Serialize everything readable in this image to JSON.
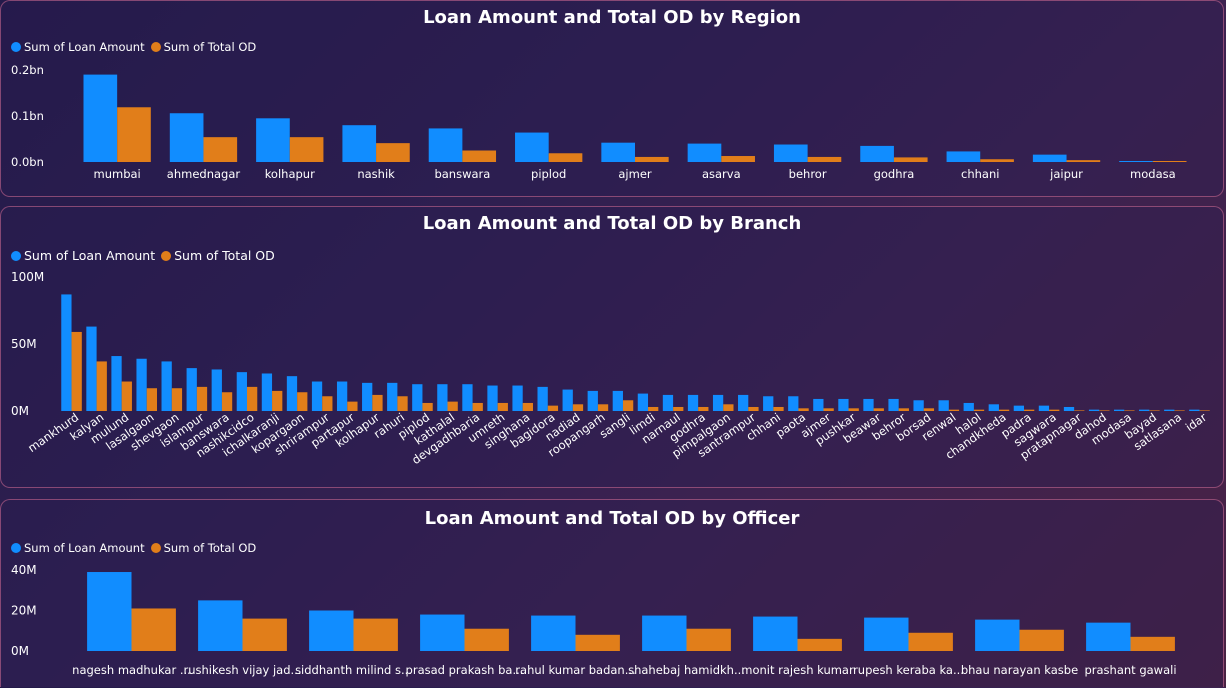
{
  "colors": {
    "loan": "#118dff",
    "od": "#e17e1a"
  },
  "chart_data": [
    {
      "type": "bar",
      "title": "Loan Amount and Total OD by Region",
      "legend": [
        "Sum of Loan Amount",
        "Sum of Total OD"
      ],
      "yticks": [
        "0.2bn",
        "0.1bn",
        "0.0bn"
      ],
      "ytick_values": [
        0.2,
        0.1,
        0.0
      ],
      "ylim": [
        0,
        0.2
      ],
      "categories": [
        "mumbai",
        "ahmednagar",
        "kolhapur",
        "nashik",
        "banswara",
        "piplod",
        "ajmer",
        "asarva",
        "behror",
        "godhra",
        "chhani",
        "jaipur",
        "modasa"
      ],
      "series": [
        {
          "name": "Sum of Loan Amount",
          "values": [
            0.19,
            0.106,
            0.095,
            0.08,
            0.073,
            0.064,
            0.042,
            0.04,
            0.038,
            0.035,
            0.023,
            0.016,
            0.002
          ]
        },
        {
          "name": "Sum of Total OD",
          "values": [
            0.119,
            0.054,
            0.054,
            0.041,
            0.025,
            0.019,
            0.011,
            0.013,
            0.011,
            0.01,
            0.006,
            0.004,
            0.001
          ]
        }
      ]
    },
    {
      "type": "bar",
      "title": "Loan Amount and Total OD by Branch",
      "legend": [
        "Sum of Loan Amount",
        "Sum of Total OD"
      ],
      "yticks": [
        "100M",
        "50M",
        "0M"
      ],
      "ytick_values": [
        100,
        50,
        0
      ],
      "ylim": [
        0,
        100
      ],
      "categories": [
        "mankhurd",
        "kalyan",
        "mulund",
        "lasalgaon",
        "shevgaon",
        "islampur",
        "banswara",
        "nashikcidco",
        "ichalkaranji",
        "kopargaon",
        "shrirampur",
        "partapur",
        "kolhapur",
        "rahuri",
        "piplod",
        "kathalal",
        "devgadhbaria",
        "umreth",
        "singhana",
        "bagidora",
        "nadiad",
        "roopangarh",
        "sangli",
        "limdi",
        "narnaul",
        "godhra",
        "pimpalgaon",
        "santrampur",
        "chhani",
        "paota",
        "ajmer",
        "pushkar",
        "beawar",
        "behror",
        "borsad",
        "renwal",
        "halol",
        "chandkheda",
        "padra",
        "sagwara",
        "pratapnagar",
        "dahod",
        "modasa",
        "bayad",
        "satlasana",
        "idar"
      ],
      "series": [
        {
          "name": "Sum of Loan Amount",
          "values": [
            87,
            63,
            41,
            39,
            37,
            32,
            31,
            29,
            28,
            26,
            22,
            22,
            21,
            21,
            20,
            20,
            20,
            19,
            19,
            18,
            16,
            15,
            15,
            13,
            12,
            12,
            12,
            12,
            11,
            11,
            9,
            9,
            9,
            9,
            8,
            8,
            6,
            5,
            4,
            4,
            3,
            1,
            1,
            1,
            1,
            1
          ]
        },
        {
          "name": "Sum of Total OD",
          "values": [
            59,
            37,
            22,
            17,
            17,
            18,
            14,
            18,
            15,
            14,
            11,
            7,
            12,
            11,
            6,
            7,
            6,
            6,
            6,
            4,
            5,
            5,
            8,
            3,
            3,
            3,
            5,
            3,
            3,
            2,
            2,
            2,
            2,
            2,
            2,
            1,
            1,
            1,
            1,
            1,
            0,
            0,
            0,
            0,
            0,
            0
          ]
        }
      ]
    },
    {
      "type": "bar",
      "title": "Loan Amount and Total OD by Officer",
      "legend": [
        "Sum of Loan Amount",
        "Sum of Total OD"
      ],
      "yticks": [
        "40M",
        "20M",
        "0M"
      ],
      "ytick_values": [
        40,
        20,
        0
      ],
      "ylim": [
        0,
        40
      ],
      "categories": [
        "nagesh madhukar ...",
        "rushikesh vijay jad...",
        "siddhanth milind s...",
        "prasad prakash ba...",
        "rahul kumar badan...",
        "shahebaj hamidkh...",
        "monit rajesh kumar",
        "rupesh keraba ka...",
        "bhau narayan kasbe",
        "prashant gawali"
      ],
      "series": [
        {
          "name": "Sum of Loan Amount",
          "values": [
            39,
            25,
            20,
            18,
            17.5,
            17.5,
            17,
            16.5,
            15.5,
            14
          ]
        },
        {
          "name": "Sum of Total OD",
          "values": [
            21,
            16,
            16,
            11,
            8,
            11,
            6,
            9,
            10.5,
            7
          ]
        }
      ]
    }
  ]
}
